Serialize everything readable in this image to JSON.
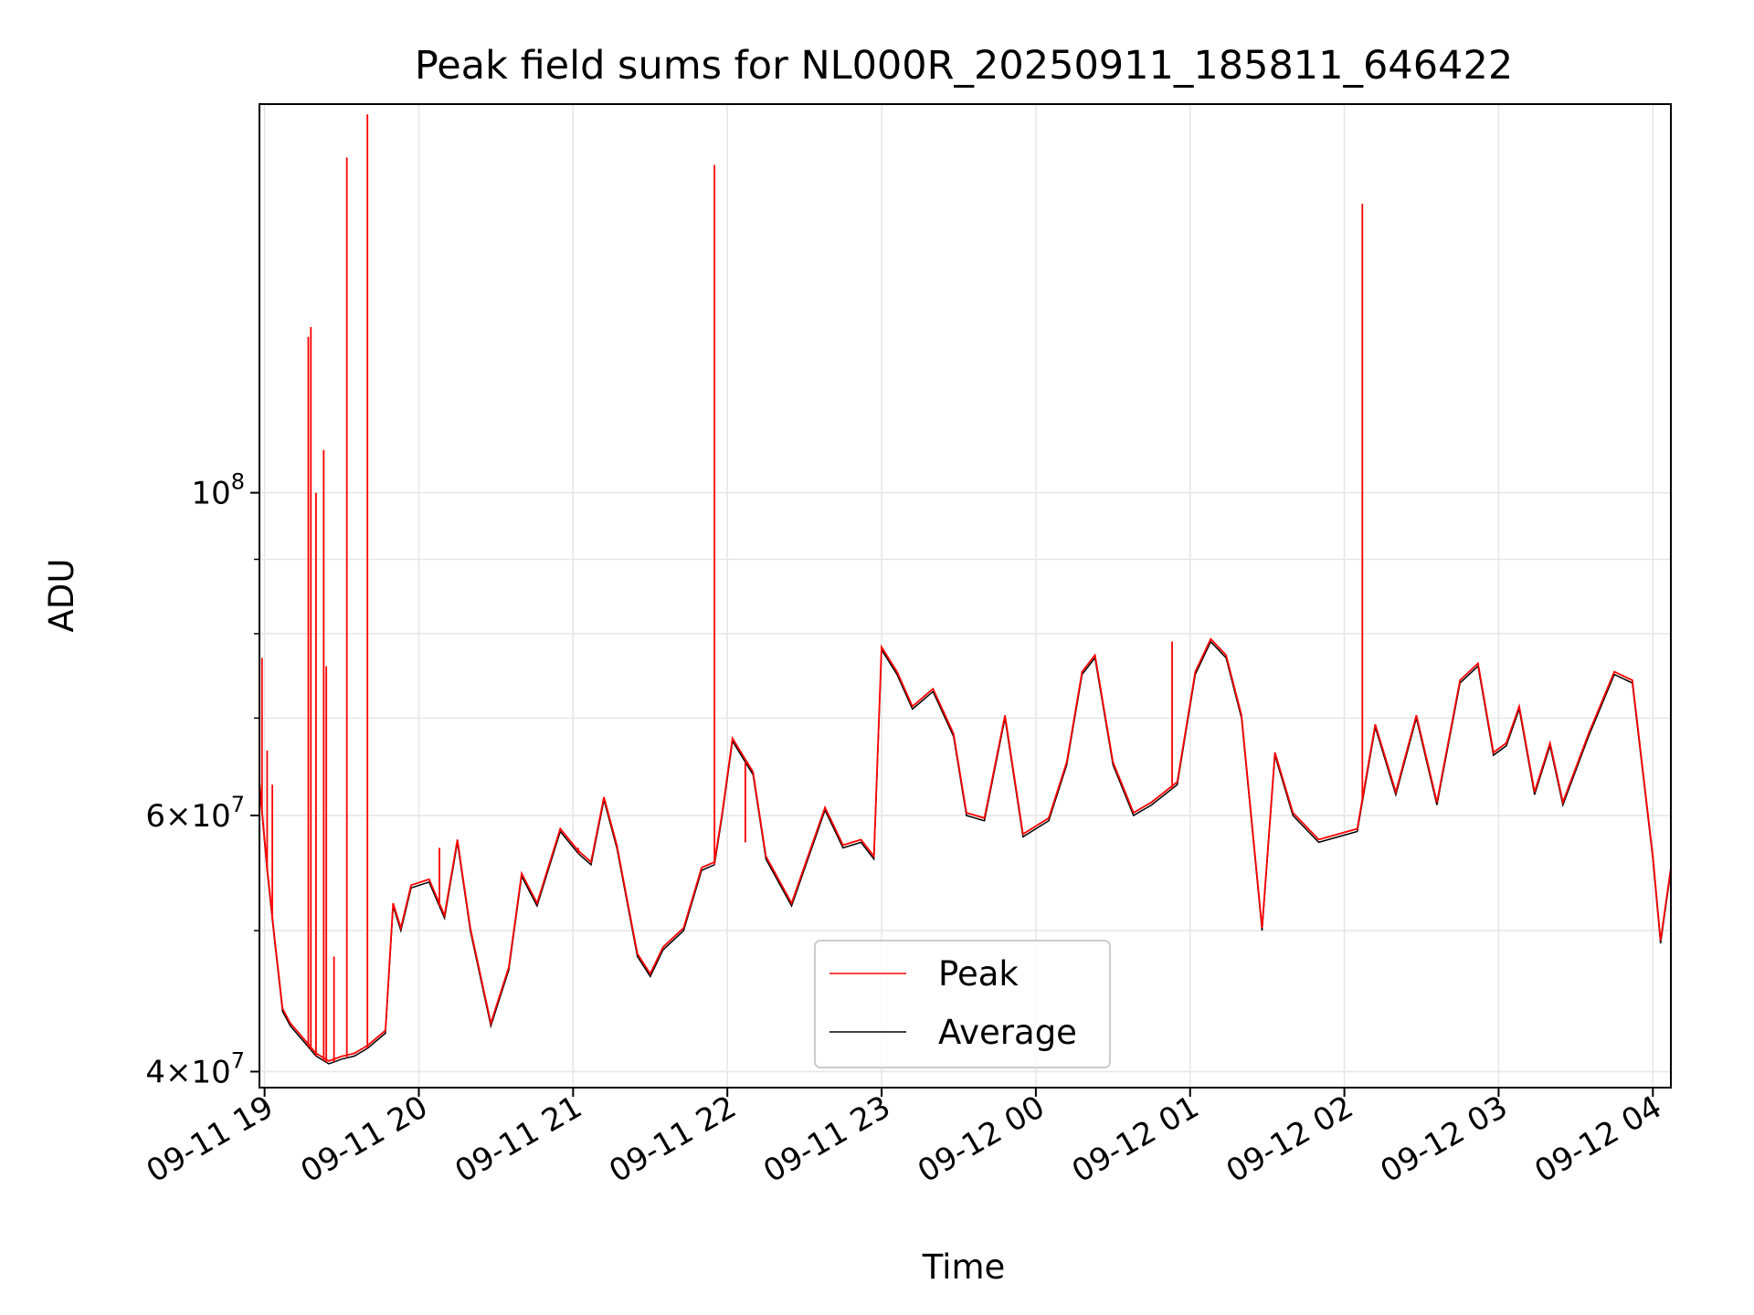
{
  "chart_data": {
    "type": "line",
    "title": "Peak field sums for NL000R_20250911_185811_646422",
    "xlabel": "Time",
    "ylabel": "ADU",
    "yscale": "log",
    "ylim": [
      39000000,
      185000000
    ],
    "xlim": [
      "2025-09-11 18:58:11",
      "2025-09-12 04:07:00"
    ],
    "grid": true,
    "legend_position": "bottom-center",
    "x_ticks": [
      {
        "t": "2025-09-11 19:00",
        "label": "09-11 19"
      },
      {
        "t": "2025-09-11 20:00",
        "label": "09-11 20"
      },
      {
        "t": "2025-09-11 21:00",
        "label": "09-11 21"
      },
      {
        "t": "2025-09-11 22:00",
        "label": "09-11 22"
      },
      {
        "t": "2025-09-11 23:00",
        "label": "09-11 23"
      },
      {
        "t": "2025-09-12 00:00",
        "label": "09-12 00"
      },
      {
        "t": "2025-09-12 01:00",
        "label": "09-12 01"
      },
      {
        "t": "2025-09-12 02:00",
        "label": "09-12 02"
      },
      {
        "t": "2025-09-12 03:00",
        "label": "09-12 03"
      },
      {
        "t": "2025-09-12 04:00",
        "label": "09-12 04"
      }
    ],
    "y_ticks": [
      {
        "value": 40000000,
        "mantissa": "4",
        "exponent": "7"
      },
      {
        "value": 60000000,
        "mantissa": "6",
        "exponent": "7"
      },
      {
        "value": 100000000,
        "mantissa": "",
        "exponent": "8"
      }
    ],
    "y_minor_ticks": [
      50000000,
      70000000,
      80000000,
      90000000
    ],
    "series": [
      {
        "name": "Average",
        "color": "#000000",
        "points": [
          [
            "2025-09-11 18:58",
            63000000
          ],
          [
            "2025-09-11 19:01",
            55000000
          ],
          [
            "2025-09-11 19:04",
            49000000
          ],
          [
            "2025-09-11 19:07",
            44000000
          ],
          [
            "2025-09-11 19:10",
            43000000
          ],
          [
            "2025-09-11 19:15",
            42000000
          ],
          [
            "2025-09-11 19:20",
            41000000
          ],
          [
            "2025-09-11 19:25",
            40500000
          ],
          [
            "2025-09-11 19:30",
            40800000
          ],
          [
            "2025-09-11 19:35",
            41000000
          ],
          [
            "2025-09-11 19:40",
            41500000
          ],
          [
            "2025-09-11 19:47",
            42500000
          ],
          [
            "2025-09-11 19:50",
            52000000
          ],
          [
            "2025-09-11 19:53",
            50000000
          ],
          [
            "2025-09-11 19:57",
            53500000
          ],
          [
            "2025-09-11 20:04",
            54000000
          ],
          [
            "2025-09-11 20:10",
            51000000
          ],
          [
            "2025-09-11 20:15",
            57500000
          ],
          [
            "2025-09-11 20:20",
            50000000
          ],
          [
            "2025-09-11 20:28",
            43000000
          ],
          [
            "2025-09-11 20:35",
            47000000
          ],
          [
            "2025-09-11 20:40",
            54500000
          ],
          [
            "2025-09-11 20:46",
            52000000
          ],
          [
            "2025-09-11 20:55",
            58500000
          ],
          [
            "2025-09-11 21:02",
            56500000
          ],
          [
            "2025-09-11 21:07",
            55500000
          ],
          [
            "2025-09-11 21:12",
            61500000
          ],
          [
            "2025-09-11 21:17",
            57000000
          ],
          [
            "2025-09-11 21:25",
            48000000
          ],
          [
            "2025-09-11 21:30",
            46500000
          ],
          [
            "2025-09-11 21:35",
            48500000
          ],
          [
            "2025-09-11 21:43",
            50000000
          ],
          [
            "2025-09-11 21:50",
            55000000
          ],
          [
            "2025-09-11 21:55",
            55500000
          ],
          [
            "2025-09-11 21:58",
            60000000
          ],
          [
            "2025-09-11 22:02",
            67500000
          ],
          [
            "2025-09-11 22:10",
            64000000
          ],
          [
            "2025-09-11 22:15",
            56000000
          ],
          [
            "2025-09-11 22:25",
            52000000
          ],
          [
            "2025-09-11 22:38",
            60500000
          ],
          [
            "2025-09-11 22:45",
            57000000
          ],
          [
            "2025-09-11 22:52",
            57500000
          ],
          [
            "2025-09-11 22:57",
            56000000
          ],
          [
            "2025-09-11 23:00",
            78000000
          ],
          [
            "2025-09-11 23:06",
            75000000
          ],
          [
            "2025-09-11 23:12",
            71000000
          ],
          [
            "2025-09-11 23:20",
            73000000
          ],
          [
            "2025-09-11 23:28",
            68000000
          ],
          [
            "2025-09-11 23:33",
            60000000
          ],
          [
            "2025-09-11 23:40",
            59500000
          ],
          [
            "2025-09-11 23:48",
            70000000
          ],
          [
            "2025-09-11 23:55",
            58000000
          ],
          [
            "2025-09-12 00:05",
            59500000
          ],
          [
            "2025-09-12 00:12",
            65000000
          ],
          [
            "2025-09-12 00:18",
            75000000
          ],
          [
            "2025-09-12 00:23",
            77000000
          ],
          [
            "2025-09-12 00:30",
            65000000
          ],
          [
            "2025-09-12 00:38",
            60000000
          ],
          [
            "2025-09-12 00:45",
            61000000
          ],
          [
            "2025-09-12 00:55",
            63000000
          ],
          [
            "2025-09-12 01:02",
            75000000
          ],
          [
            "2025-09-12 01:08",
            79000000
          ],
          [
            "2025-09-12 01:14",
            77000000
          ],
          [
            "2025-09-12 01:20",
            70000000
          ],
          [
            "2025-09-12 01:28",
            50000000
          ],
          [
            "2025-09-12 01:33",
            66000000
          ],
          [
            "2025-09-12 01:40",
            60000000
          ],
          [
            "2025-09-12 01:50",
            57500000
          ],
          [
            "2025-09-12 02:05",
            58500000
          ],
          [
            "2025-09-12 02:12",
            69000000
          ],
          [
            "2025-09-12 02:20",
            62000000
          ],
          [
            "2025-09-12 02:28",
            70000000
          ],
          [
            "2025-09-12 02:36",
            61000000
          ],
          [
            "2025-09-12 02:45",
            74000000
          ],
          [
            "2025-09-12 02:52",
            76000000
          ],
          [
            "2025-09-12 02:58",
            66000000
          ],
          [
            "2025-09-12 03:03",
            67000000
          ],
          [
            "2025-09-12 03:08",
            71000000
          ],
          [
            "2025-09-12 03:14",
            62000000
          ],
          [
            "2025-09-12 03:20",
            67000000
          ],
          [
            "2025-09-12 03:25",
            61000000
          ],
          [
            "2025-09-12 03:35",
            68000000
          ],
          [
            "2025-09-12 03:45",
            75000000
          ],
          [
            "2025-09-12 03:52",
            74000000
          ],
          [
            "2025-09-12 04:00",
            56000000
          ],
          [
            "2025-09-12 04:03",
            49000000
          ],
          [
            "2025-09-12 04:07",
            55000000
          ]
        ]
      },
      {
        "name": "Peak",
        "color": "#ff0000",
        "spikes": [
          [
            "2025-09-11 18:59",
            77000000
          ],
          [
            "2025-09-11 19:01",
            66500000
          ],
          [
            "2025-09-11 19:03",
            63000000
          ],
          [
            "2025-09-11 19:17",
            128000000
          ],
          [
            "2025-09-11 19:18",
            130000000
          ],
          [
            "2025-09-11 19:20",
            100000000
          ],
          [
            "2025-09-11 19:23",
            107000000
          ],
          [
            "2025-09-11 19:24",
            76000000
          ],
          [
            "2025-09-11 19:27",
            48000000
          ],
          [
            "2025-09-11 19:32",
            170000000
          ],
          [
            "2025-09-11 19:40",
            182000000
          ],
          [
            "2025-09-11 20:08",
            57000000
          ],
          [
            "2025-09-11 21:02",
            57000000
          ],
          [
            "2025-09-11 21:55",
            168000000
          ],
          [
            "2025-09-11 22:07",
            57500000
          ],
          [
            "2025-09-12 00:53",
            79000000
          ],
          [
            "2025-09-12 02:07",
            158000000
          ]
        ]
      }
    ]
  }
}
